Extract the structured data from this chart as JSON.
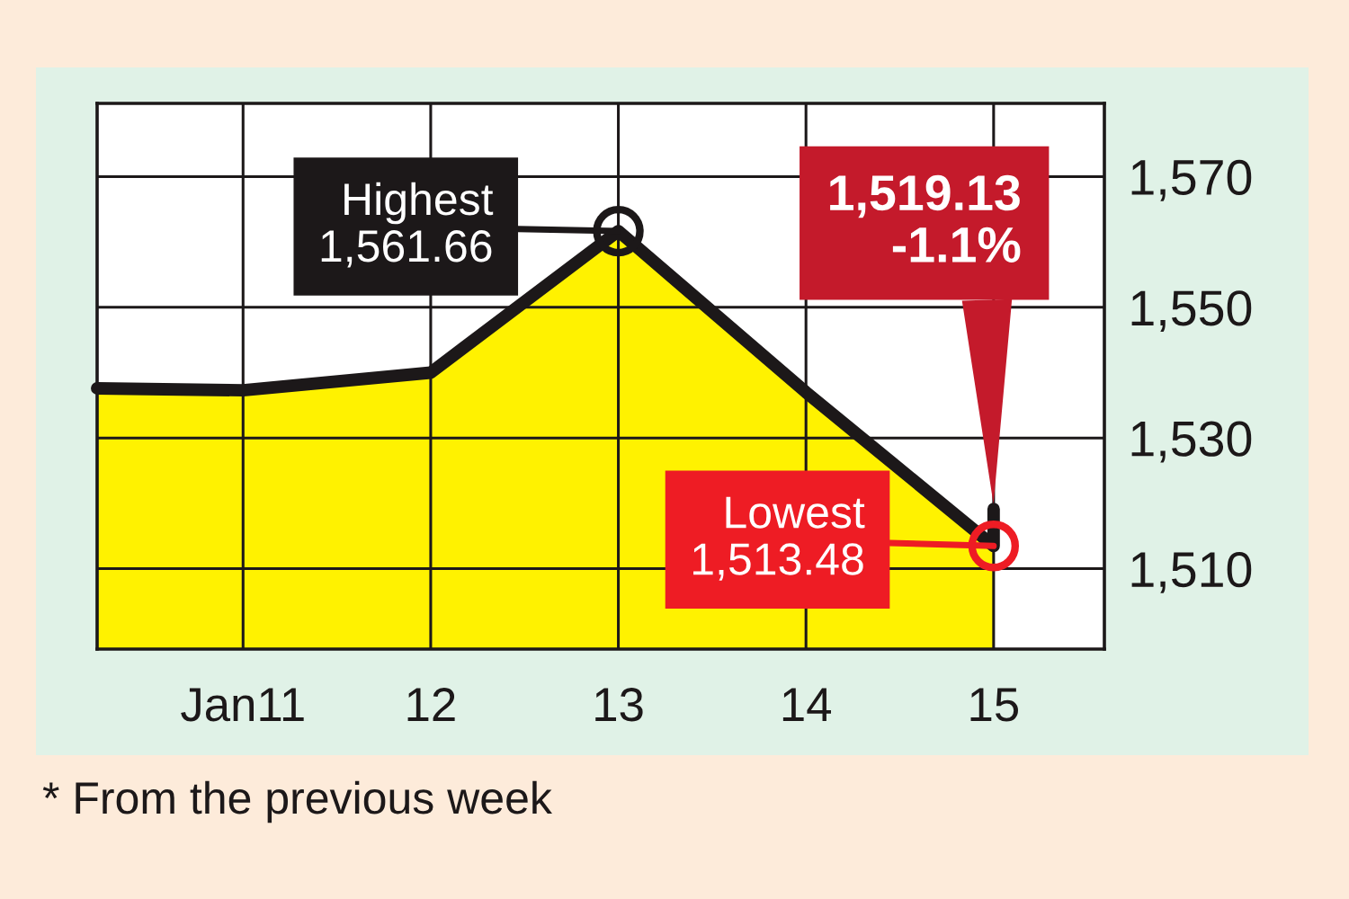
{
  "chart_data": {
    "type": "area",
    "x": [
      "--01-10T05:20",
      "--01-11",
      "--01-12",
      "--01-13",
      "--01-14",
      "--01-15",
      "--01-15"
    ],
    "series": [
      {
        "color": "#fff200",
        "values": [
          1537.6,
          1537.3,
          1540,
          1561.66,
          1537,
          1513.48,
          1519.13
        ]
      }
    ],
    "xlim": [
      "--01-10T05:20",
      "--01-15T14:10"
    ],
    "xticks": [
      {
        "value": "--01-11",
        "label": "Jan11"
      },
      {
        "value": "--01-12",
        "label": "12"
      },
      {
        "value": "--01-13",
        "label": "13"
      },
      {
        "value": "--01-14",
        "label": "14"
      },
      {
        "value": "--01-15",
        "label": "15"
      }
    ],
    "ylim": [
      1497.7,
      1581.2
    ],
    "yticks": [
      {
        "value": 1510,
        "label": "1,510"
      },
      {
        "value": 1530,
        "label": "1,530"
      },
      {
        "value": 1550,
        "label": "1,550"
      },
      {
        "value": 1570,
        "label": "1,570"
      }
    ],
    "grid": true,
    "annotations": [
      {
        "text": "Highest\n1,561.66",
        "x": "--01-13",
        "y": 1561.66
      },
      {
        "text": "1,519.13\n-1.1%",
        "x": "--01-15",
        "y": 1519.13
      },
      {
        "text": "Lowest\n1,513.48",
        "x": "--01-15",
        "y": 1513.48
      },
      "* From the previous week"
    ]
  }
}
